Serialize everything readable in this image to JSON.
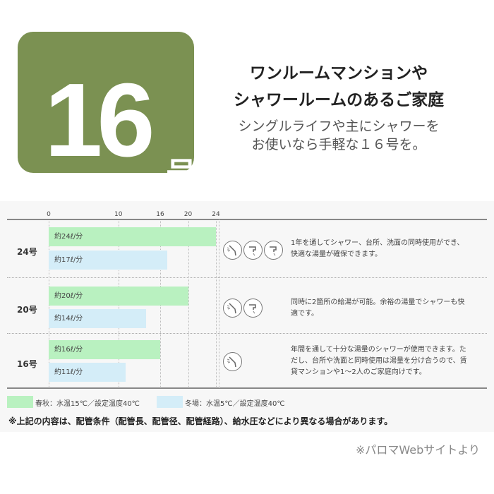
{
  "badge": {
    "number": "16",
    "unit": "号",
    "color": "#7b9152"
  },
  "headline": {
    "line1": "ワンルームマンションや",
    "line2": "シャワールームのあるご家庭",
    "sub1": "シングルライフや主にシャワーを",
    "sub2": "お使いなら手軽な１６号を。"
  },
  "chart_data": {
    "type": "bar",
    "orientation": "horizontal",
    "categories": [
      "24号",
      "20号",
      "16号"
    ],
    "xticks": [
      "0",
      "10",
      "16",
      "20",
      "24"
    ],
    "xlim": [
      0,
      24
    ],
    "grid": true,
    "legend_placement": "bottom-left",
    "series": [
      {
        "name": "春秋：水温15℃／設定温度40℃",
        "color": "#b9f1c0",
        "values": [
          24,
          20,
          16
        ],
        "labels": [
          "約24ℓ/分",
          "約20ℓ/分",
          "約16ℓ/分"
        ]
      },
      {
        "name": "冬場：水温5℃／設定温度40℃",
        "color": "#d4edf8",
        "values": [
          17,
          14,
          11
        ],
        "labels": [
          "約17ℓ/分",
          "約14ℓ/分",
          "約11ℓ/分"
        ]
      }
    ]
  },
  "rows": [
    {
      "icons": [
        "shower-icon",
        "faucet-icon",
        "faucet-icon"
      ],
      "desc1": "1年を通してシャワー、台所、洗面の同時使用ができ、",
      "desc2": "快適な湯量が確保できます。"
    },
    {
      "icons": [
        "shower-icon",
        "faucet-icon"
      ],
      "desc1": "同時に2箇所の給湯が可能。余裕の湯量でシャワーも快",
      "desc2": "適です。"
    },
    {
      "icons": [
        "shower-icon"
      ],
      "desc1": "年間を通して十分な湯量のシャワーが使用できます。た",
      "desc2": "だし、台所や洗面と同時使用は湯量を分け合うので、賃",
      "desc3": "貸マンションや1〜2人のご家庭向けです。"
    }
  ],
  "note": "※上記の内容は、配管条件（配管長、配管径、配管経路）、給水圧などにより異なる場合があります。",
  "source": "※パロマWebサイトより"
}
